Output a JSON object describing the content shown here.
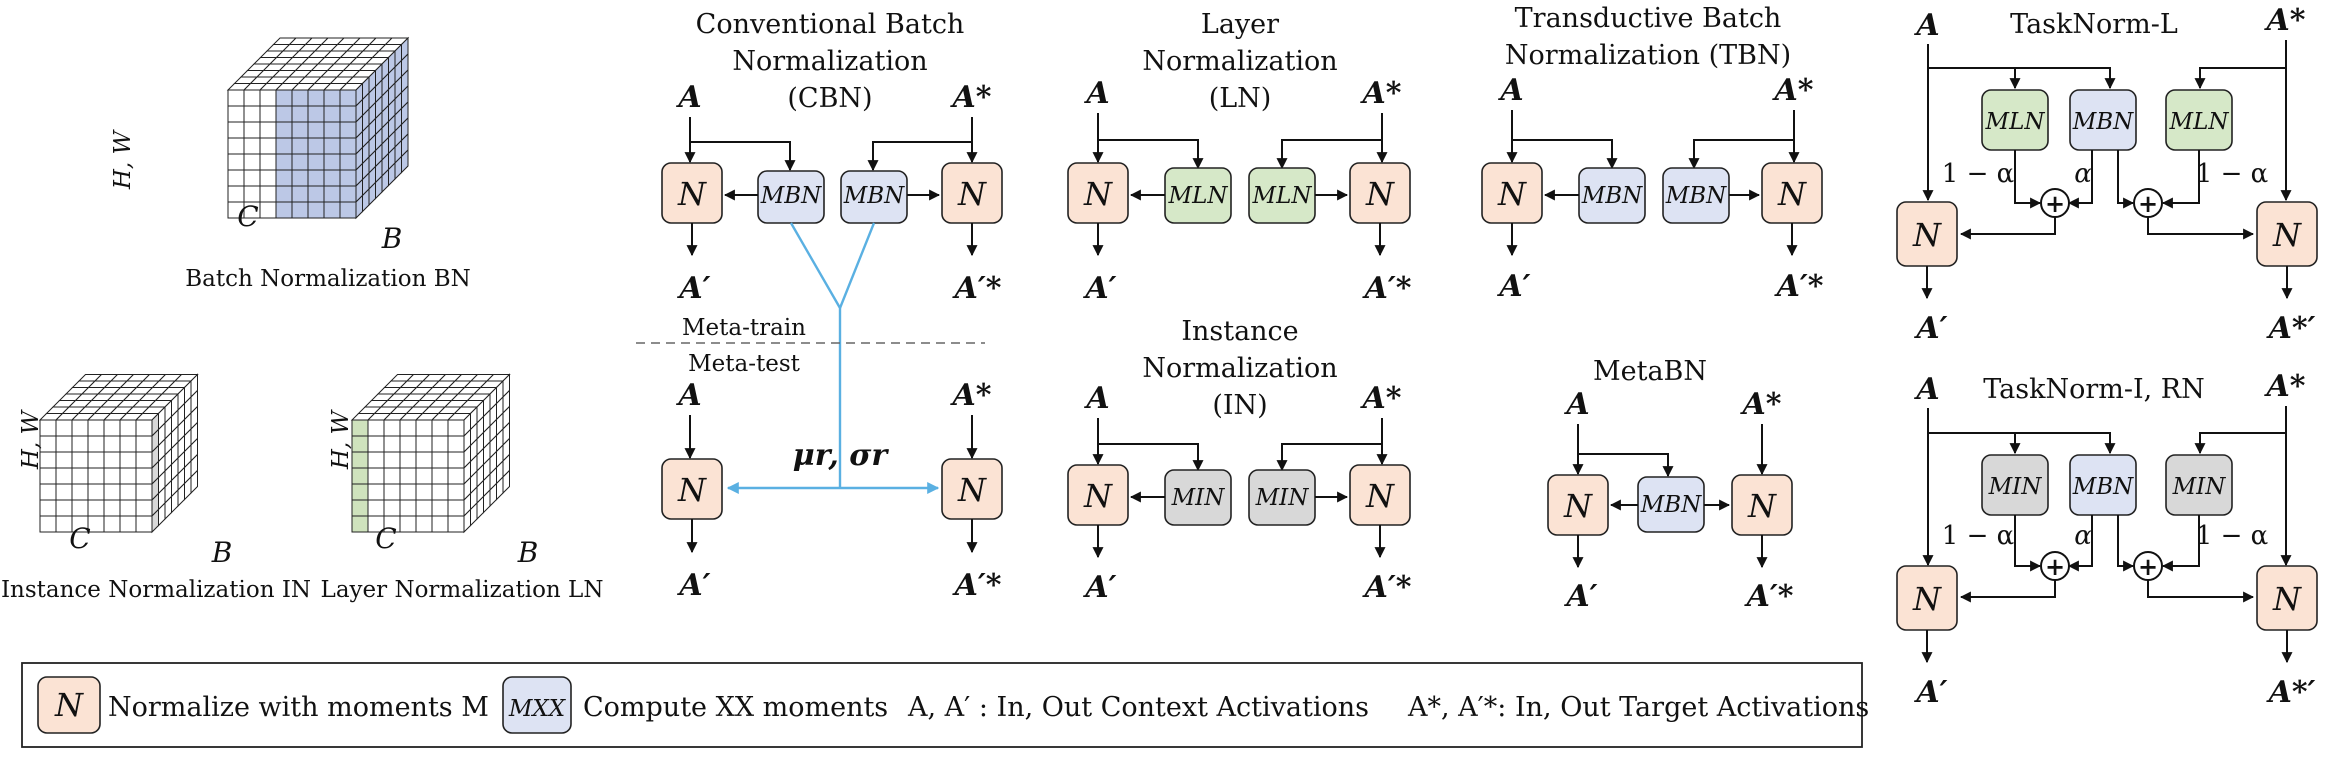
{
  "colors": {
    "normalize_box": "#fbe3d4",
    "moment_bn": "#dde3f3",
    "moment_ln": "#d6e8c8",
    "moment_in": "#d8d8d8",
    "meta_line": "#5ab0e2"
  },
  "cubes": {
    "bn": {
      "hw": "H, W",
      "c": "C",
      "b": "B",
      "caption": "Batch Normalization BN"
    },
    "in": {
      "hw": "H, W",
      "c": "C",
      "b": "B",
      "caption": "Instance Normalization IN"
    },
    "ln": {
      "hw": "H, W",
      "c": "C",
      "b": "B",
      "caption": "Layer Normalization LN"
    }
  },
  "cbn": {
    "title": [
      "Conventional Batch",
      "Normalization",
      "(CBN)"
    ],
    "a": "A",
    "a_star": "A*",
    "a_out": "A′",
    "a_star_out": "A′*",
    "n": "N",
    "m": "MBN",
    "meta_train": "Meta-train",
    "meta_test": "Meta-test",
    "moments": "μr, σr"
  },
  "ln": {
    "title": [
      "Layer",
      "Normalization",
      "(LN)"
    ],
    "a": "A",
    "a_star": "A*",
    "a_out": "A′",
    "a_star_out": "A′*",
    "n": "N",
    "m": "MLN"
  },
  "tbn": {
    "title": [
      "Transductive Batch",
      "Normalization (TBN)"
    ],
    "a": "A",
    "a_star": "A*",
    "a_out": "A′",
    "a_star_out": "A′*",
    "n": "N",
    "m": "MBN"
  },
  "in": {
    "title": [
      "Instance",
      "Normalization",
      "(IN)"
    ],
    "a": "A",
    "a_star": "A*",
    "a_out": "A′",
    "a_star_out": "A′*",
    "n": "N",
    "m": "MIN"
  },
  "metabn": {
    "title": "MetaBN",
    "a": "A",
    "a_star": "A*",
    "a_out": "A′",
    "a_star_out": "A′*",
    "n": "N",
    "m": "MBN"
  },
  "tasknorm_l": {
    "title": "TaskNorm-L",
    "a": "A",
    "a_star": "A*",
    "a_out": "A′",
    "a_star_out": "A*′",
    "n": "N",
    "m_left": "MLN",
    "m_mid": "MBN",
    "m_right": "MLN",
    "one_minus_alpha": "1 − α",
    "alpha": "α",
    "plus": "+"
  },
  "tasknorm_i": {
    "title": "TaskNorm-I, RN",
    "a": "A",
    "a_star": "A*",
    "a_out": "A′",
    "a_star_out": "A*′",
    "n": "N",
    "m_left": "MIN",
    "m_mid": "MBN",
    "m_right": "MIN",
    "one_minus_alpha": "1 − α",
    "alpha": "α",
    "plus": "+"
  },
  "legend": {
    "n_symbol": "N",
    "n_text": "Normalize with moments M",
    "m_symbol": "MXX",
    "m_text": "Compute XX moments",
    "context_text": "A, A′ : In, Out Context Activations",
    "target_text": "A*, A′*: In, Out Target Activations"
  }
}
